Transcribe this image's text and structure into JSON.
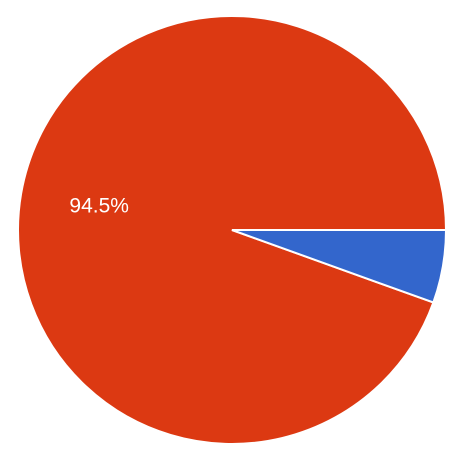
{
  "chart_data": {
    "type": "pie",
    "slices": [
      {
        "value": 94.5,
        "label": "94.5%",
        "color": "#dc3912"
      },
      {
        "value": 5.5,
        "label": "",
        "color": "#3366cc"
      }
    ],
    "start_direction": "east",
    "direction": "counter-clockwise",
    "slice_border_color": "#ffffff"
  }
}
